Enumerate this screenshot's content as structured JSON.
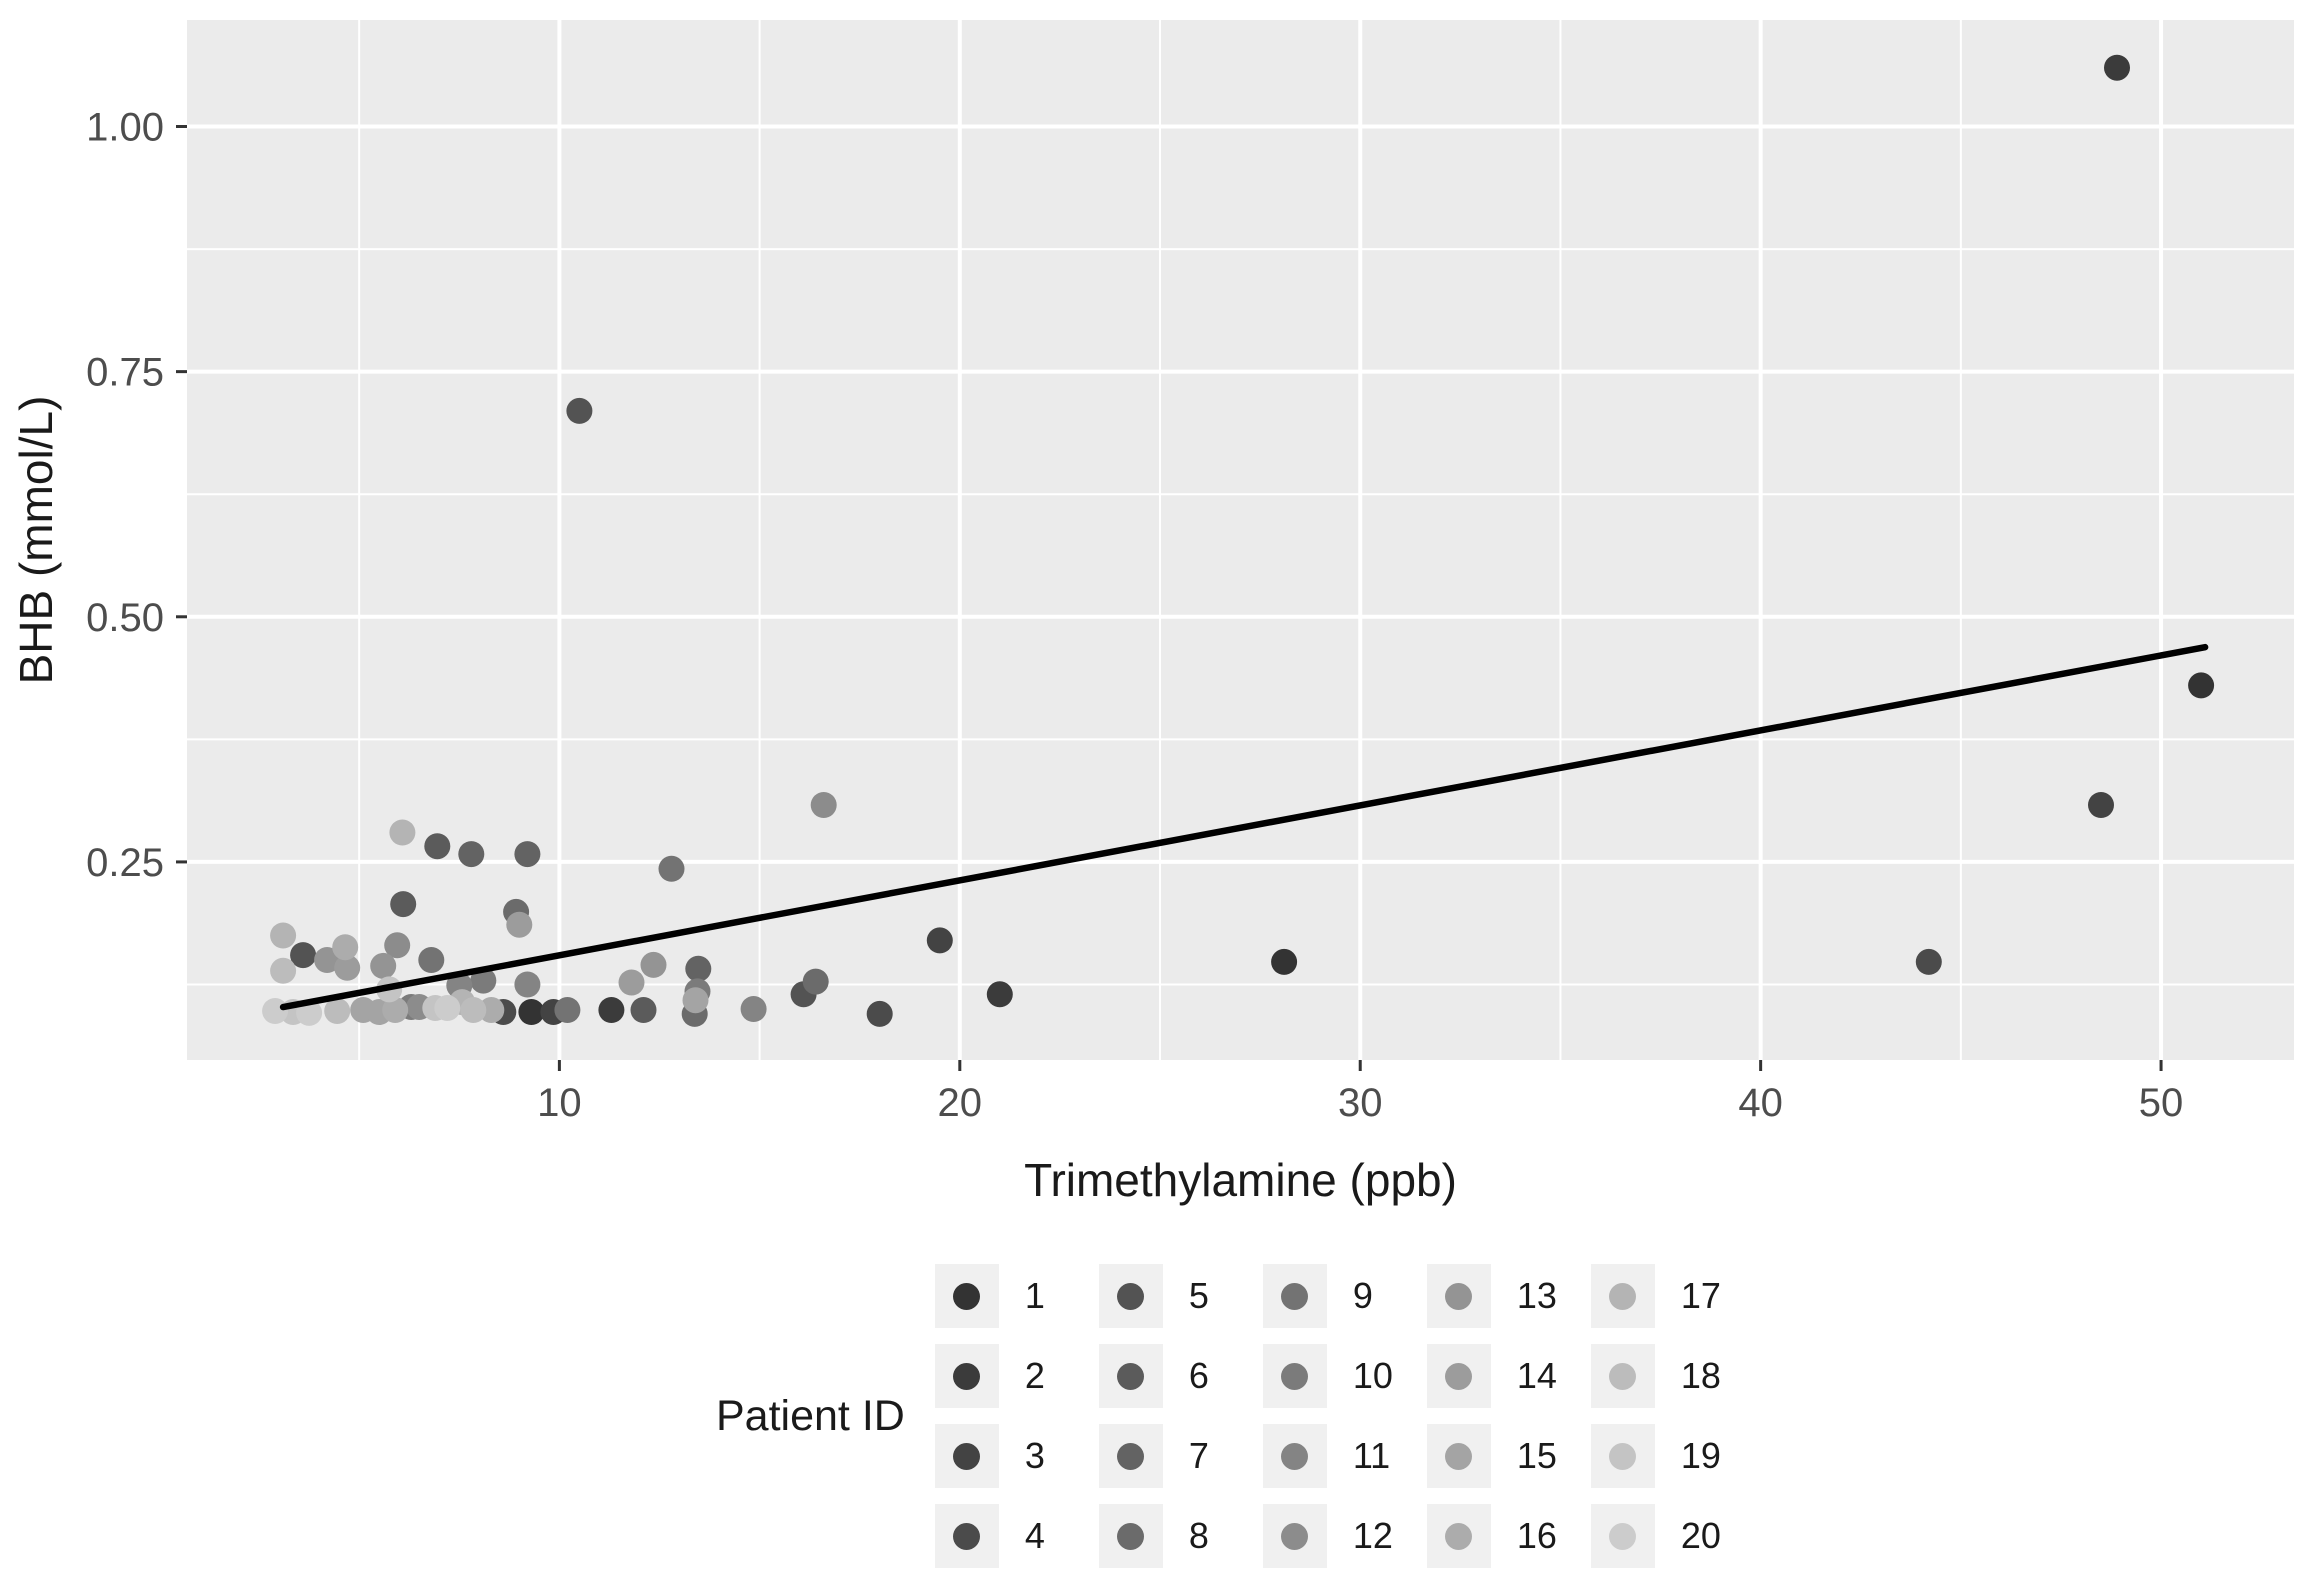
{
  "chart_data": {
    "type": "scatter",
    "title": "",
    "xlabel": "Trimethylamine (ppb)",
    "ylabel": "BHB (mmol/L)",
    "x_range": [
      0.7,
      53.32
    ],
    "y_range": [
      0.048,
      1.1086
    ],
    "x_ticks": {
      "major": [
        10,
        20,
        30,
        40,
        50
      ],
      "labels": [
        "10",
        "20",
        "30",
        "40",
        "50"
      ],
      "minor": [
        5,
        15,
        25,
        35,
        45
      ]
    },
    "y_ticks": {
      "major": [
        0.25,
        0.5,
        0.75,
        1.0
      ],
      "labels": [
        "0.25",
        "0.50",
        "0.75",
        "1.00"
      ],
      "minor": [
        0.125,
        0.375,
        0.625,
        0.875
      ]
    },
    "grid": "on",
    "legend_position": "bottom",
    "colors": {
      "panel_bg": "#EBEBEB",
      "gridline": "#FFFFFF",
      "axis_text": "#4D4D4D",
      "tick_mark": "#333333",
      "legend_key_bg": "#F0F0F0",
      "trend_line": "#000000"
    },
    "trend_line": {
      "x1": 3.1,
      "y1": 0.102,
      "x2": 51.1,
      "y2": 0.469
    },
    "legend": {
      "title": "Patient ID"
    },
    "series": [
      {
        "patient": "1",
        "color": "#333333",
        "points": [
          [
            9.3,
            0.097
          ],
          [
            28.1,
            0.148
          ],
          [
            51.0,
            0.43
          ]
        ]
      },
      {
        "patient": "2",
        "color": "#3B3B3B",
        "points": [
          [
            11.3,
            0.099
          ],
          [
            21.0,
            0.115
          ],
          [
            48.9,
            1.06
          ]
        ]
      },
      {
        "patient": "3",
        "color": "#434343",
        "points": [
          [
            9.85,
            0.097
          ],
          [
            19.5,
            0.17
          ],
          [
            48.5,
            0.308
          ]
        ]
      },
      {
        "patient": "4",
        "color": "#4B4B4B",
        "points": [
          [
            8.6,
            0.097
          ],
          [
            18.0,
            0.095
          ],
          [
            44.2,
            0.148
          ]
        ]
      },
      {
        "patient": "5",
        "color": "#535353",
        "points": [
          [
            3.6,
            0.155
          ],
          [
            10.5,
            0.71
          ],
          [
            16.1,
            0.115
          ]
        ]
      },
      {
        "patient": "6",
        "color": "#5B5B5B",
        "points": [
          [
            6.1,
            0.207
          ],
          [
            6.95,
            0.266
          ],
          [
            12.1,
            0.099
          ]
        ]
      },
      {
        "patient": "7",
        "color": "#636363",
        "points": [
          [
            7.8,
            0.258
          ],
          [
            9.2,
            0.258
          ],
          [
            13.47,
            0.141
          ]
        ]
      },
      {
        "patient": "8",
        "color": "#6B6B6B",
        "points": [
          [
            8.92,
            0.199
          ],
          [
            13.38,
            0.095
          ],
          [
            16.4,
            0.128
          ]
        ]
      },
      {
        "patient": "9",
        "color": "#737373",
        "points": [
          [
            6.8,
            0.15
          ],
          [
            10.2,
            0.099
          ],
          [
            12.8,
            0.243
          ]
        ]
      },
      {
        "patient": "10",
        "color": "#7B7B7B",
        "points": [
          [
            6.3,
            0.102
          ],
          [
            8.1,
            0.129
          ],
          [
            13.45,
            0.118
          ]
        ]
      },
      {
        "patient": "11",
        "color": "#848484",
        "points": [
          [
            7.5,
            0.124
          ],
          [
            9.2,
            0.125
          ],
          [
            14.85,
            0.1
          ]
        ]
      },
      {
        "patient": "12",
        "color": "#8C8C8C",
        "points": [
          [
            5.95,
            0.165
          ],
          [
            6.5,
            0.102
          ],
          [
            16.6,
            0.308
          ]
        ]
      },
      {
        "patient": "13",
        "color": "#949494",
        "points": [
          [
            4.2,
            0.15
          ],
          [
            5.6,
            0.144
          ],
          [
            12.35,
            0.145
          ]
        ]
      },
      {
        "patient": "14",
        "color": "#9C9C9C",
        "points": [
          [
            4.7,
            0.142
          ],
          [
            9.0,
            0.186
          ],
          [
            11.8,
            0.127
          ]
        ]
      },
      {
        "patient": "15",
        "color": "#A4A4A4",
        "points": [
          [
            5.1,
            0.099
          ],
          [
            5.5,
            0.097
          ],
          [
            13.4,
            0.109
          ]
        ]
      },
      {
        "patient": "16",
        "color": "#ACACAC",
        "points": [
          [
            4.65,
            0.163
          ],
          [
            5.9,
            0.099
          ],
          [
            8.3,
            0.099
          ]
        ]
      },
      {
        "patient": "17",
        "color": "#B4B4B4",
        "points": [
          [
            3.1,
            0.175
          ],
          [
            6.08,
            0.28
          ],
          [
            7.57,
            0.107
          ]
        ]
      },
      {
        "patient": "18",
        "color": "#BCBCBC",
        "points": [
          [
            3.1,
            0.139
          ],
          [
            4.45,
            0.098
          ],
          [
            7.85,
            0.099
          ]
        ]
      },
      {
        "patient": "19",
        "color": "#C4C4C4",
        "points": [
          [
            3.35,
            0.097
          ],
          [
            5.75,
            0.12
          ],
          [
            6.9,
            0.101
          ]
        ]
      },
      {
        "patient": "20",
        "color": "#CCCCCC",
        "points": [
          [
            2.9,
            0.098
          ],
          [
            3.75,
            0.096
          ],
          [
            7.2,
            0.101
          ]
        ]
      }
    ]
  }
}
